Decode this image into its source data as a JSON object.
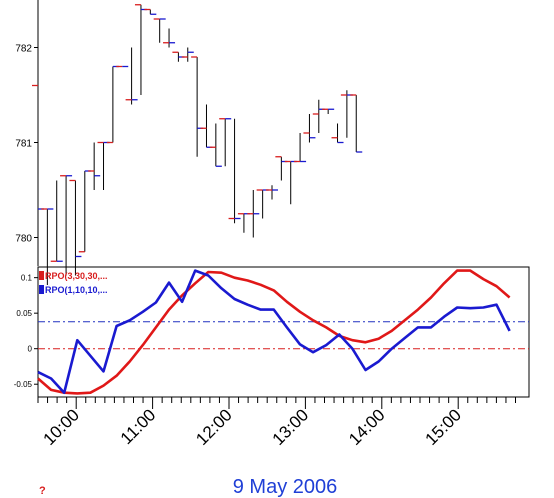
{
  "chart_data": [
    {
      "type": "ohlc",
      "yticks": [
        "780",
        "781",
        "782"
      ],
      "ylim": [
        779.7,
        782.5
      ],
      "ticks": [
        780,
        781,
        782
      ],
      "bars": [
        {
          "o": 781.6,
          "h": 781.6,
          "l": 779.7,
          "c": 780.3
        },
        {
          "o": 780.3,
          "h": 780.3,
          "l": 779.5,
          "c": 780.3
        },
        {
          "o": 779.75,
          "h": 780.6,
          "l": 779.75,
          "c": 779.75
        },
        {
          "o": 780.65,
          "h": 780.65,
          "l": 779.6,
          "c": 780.65
        },
        {
          "o": 780.6,
          "h": 780.6,
          "l": 779.6,
          "c": 779.8
        },
        {
          "o": 779.85,
          "h": 780.7,
          "l": 779.85,
          "c": 780.7
        },
        {
          "o": 780.7,
          "h": 781.0,
          "l": 780.5,
          "c": 780.65
        },
        {
          "o": 781.0,
          "h": 781.0,
          "l": 780.5,
          "c": 781.0
        },
        {
          "o": 781.0,
          "h": 781.8,
          "l": 781.0,
          "c": 781.8
        },
        {
          "o": 781.8,
          "h": 781.8,
          "l": 781.8,
          "c": 781.8
        },
        {
          "o": 781.45,
          "h": 782.0,
          "l": 781.4,
          "c": 781.45
        },
        {
          "o": 782.45,
          "h": 782.45,
          "l": 781.5,
          "c": 782.4
        },
        {
          "o": 782.4,
          "h": 782.4,
          "l": 782.35,
          "c": 782.35
        },
        {
          "o": 782.3,
          "h": 782.3,
          "l": 782.05,
          "c": 782.3
        },
        {
          "o": 782.05,
          "h": 782.2,
          "l": 782.0,
          "c": 782.05
        },
        {
          "o": 781.95,
          "h": 781.95,
          "l": 781.85,
          "c": 781.9
        },
        {
          "o": 781.9,
          "h": 782.0,
          "l": 781.85,
          "c": 781.95
        },
        {
          "o": 781.9,
          "h": 781.9,
          "l": 780.85,
          "c": 781.15
        },
        {
          "o": 781.15,
          "h": 781.4,
          "l": 780.95,
          "c": 780.95
        },
        {
          "o": 780.95,
          "h": 781.2,
          "l": 780.75,
          "c": 780.75
        },
        {
          "o": 781.25,
          "h": 781.25,
          "l": 780.75,
          "c": 781.25
        },
        {
          "o": 780.2,
          "h": 781.25,
          "l": 780.15,
          "c": 780.2
        },
        {
          "o": 780.25,
          "h": 780.25,
          "l": 780.05,
          "c": 780.25
        },
        {
          "o": 780.25,
          "h": 780.5,
          "l": 780.0,
          "c": 780.25
        },
        {
          "o": 780.5,
          "h": 780.5,
          "l": 780.2,
          "c": 780.5
        },
        {
          "o": 780.5,
          "h": 780.55,
          "l": 780.4,
          "c": 780.5
        },
        {
          "o": 780.85,
          "h": 780.85,
          "l": 780.6,
          "c": 780.8
        },
        {
          "o": 780.8,
          "h": 780.8,
          "l": 780.35,
          "c": 780.8
        },
        {
          "o": 780.8,
          "h": 781.1,
          "l": 780.8,
          "c": 780.8
        },
        {
          "o": 781.1,
          "h": 781.3,
          "l": 781.0,
          "c": 781.05
        },
        {
          "o": 781.3,
          "h": 781.45,
          "l": 781.1,
          "c": 781.35
        },
        {
          "o": 781.35,
          "h": 781.35,
          "l": 781.3,
          "c": 781.35
        },
        {
          "o": 781.05,
          "h": 781.2,
          "l": 781.0,
          "c": 781.0
        },
        {
          "o": 781.5,
          "h": 781.55,
          "l": 781.05,
          "c": 781.5
        },
        {
          "o": 781.5,
          "h": 781.5,
          "l": 780.9,
          "c": 780.9
        }
      ]
    },
    {
      "type": "line",
      "yticks": [
        "-0.05",
        "0",
        "0.05",
        "0.1"
      ],
      "ticks": [
        -0.05,
        0,
        0.05,
        0.1
      ],
      "ylim": [
        -0.068,
        0.115
      ],
      "reference_lines": [
        {
          "y": 0.038,
          "color": "#2030c0"
        },
        {
          "y": 0.0,
          "color": "#d81e1e"
        }
      ],
      "series": [
        {
          "name": "RPO(3,30,30,...",
          "color": "#e01818",
          "values": [
            -0.042,
            -0.058,
            -0.062,
            -0.063,
            -0.062,
            -0.052,
            -0.038,
            -0.018,
            0.005,
            0.03,
            0.055,
            0.075,
            0.092,
            0.108,
            0.107,
            0.1,
            0.096,
            0.09,
            0.082,
            0.066,
            0.052,
            0.04,
            0.03,
            0.018,
            0.012,
            0.009,
            0.014,
            0.025,
            0.04,
            0.055,
            0.072,
            0.092,
            0.11,
            0.11,
            0.098,
            0.088,
            0.072
          ]
        },
        {
          "name": "RPO(1,10,10,...",
          "color": "#1a1ad0",
          "values": [
            -0.033,
            -0.042,
            -0.062,
            0.012,
            -0.01,
            -0.032,
            0.032,
            0.04,
            0.052,
            0.065,
            0.093,
            0.066,
            0.11,
            0.103,
            0.085,
            0.07,
            0.062,
            0.055,
            0.055,
            0.03,
            0.006,
            -0.005,
            0.005,
            0.02,
            0.0,
            -0.03,
            -0.018,
            0.0,
            0.015,
            0.03,
            0.03,
            0.045,
            0.058,
            0.057,
            0.058,
            0.062,
            0.025
          ]
        }
      ]
    }
  ],
  "xaxis": {
    "labels": [
      "10:00",
      "11:00",
      "12:00",
      "13:00",
      "14:00",
      "15:00"
    ],
    "label_index": [
      4,
      12,
      20,
      28,
      36,
      44
    ]
  },
  "footer": {
    "date": "9 May 2006",
    "mark": "?"
  }
}
